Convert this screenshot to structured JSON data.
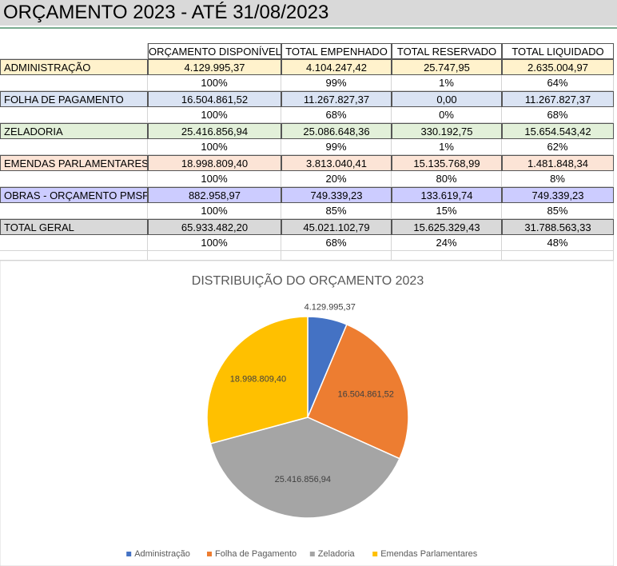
{
  "header": {
    "title": "ORÇAMENTO 2023 - ATÉ 31/08/2023"
  },
  "table": {
    "columns": [
      "ORÇAMENTO DISPONÍVEL",
      "TOTAL EMPENHADO",
      "TOTAL RESERVADO",
      "TOTAL LIQUIDADO"
    ],
    "groups": [
      {
        "label": "ADMINISTRAÇÃO",
        "amounts": [
          "4.129.995,37",
          "4.104.247,42",
          "25.747,95",
          "2.635.004,97"
        ],
        "percents": [
          "100%",
          "99%",
          "1%",
          "64%"
        ]
      },
      {
        "label": "FOLHA DE PAGAMENTO",
        "amounts": [
          "16.504.861,52",
          "11.267.827,37",
          "0,00",
          "11.267.827,37"
        ],
        "percents": [
          "100%",
          "68%",
          "0%",
          "68%"
        ]
      },
      {
        "label": "ZELADORIA",
        "amounts": [
          "25.416.856,94",
          "25.086.648,36",
          "330.192,75",
          "15.654.543,42"
        ],
        "percents": [
          "100%",
          "99%",
          "1%",
          "62%"
        ]
      },
      {
        "label": "EMENDAS PARLAMENTARES",
        "amounts": [
          "18.998.809,40",
          "3.813.040,41",
          "15.135.768,99",
          "1.481.848,34"
        ],
        "percents": [
          "100%",
          "20%",
          "80%",
          "8%"
        ]
      },
      {
        "label": "OBRAS - ORÇAMENTO PMSP",
        "amounts": [
          "882.958,97",
          "749.339,23",
          "133.619,74",
          "749.339,23"
        ],
        "percents": [
          "100%",
          "85%",
          "15%",
          "85%"
        ]
      },
      {
        "label": "TOTAL GERAL",
        "amounts": [
          "65.933.482,20",
          "45.021.102,79",
          "15.625.329,43",
          "31.788.563,33"
        ],
        "percents": [
          "100%",
          "68%",
          "24%",
          "48%"
        ]
      }
    ]
  },
  "chart_data": {
    "type": "pie",
    "title": "DISTRIBUIÇÃO DO ORÇAMENTO 2023",
    "categories": [
      "Administração",
      "Folha de Pagamento",
      "Zeladoria",
      "Emendas Parlamentares"
    ],
    "values": [
      4129995.37,
      16504861.52,
      25416856.94,
      18998809.4
    ],
    "value_labels": [
      "4.129.995,37",
      "16.504.861,52",
      "25.416.856,94",
      "18.998.809,40"
    ],
    "colors": [
      "#4472c4",
      "#ed7d31",
      "#a5a5a5",
      "#ffc000"
    ],
    "legend": "bottom"
  }
}
